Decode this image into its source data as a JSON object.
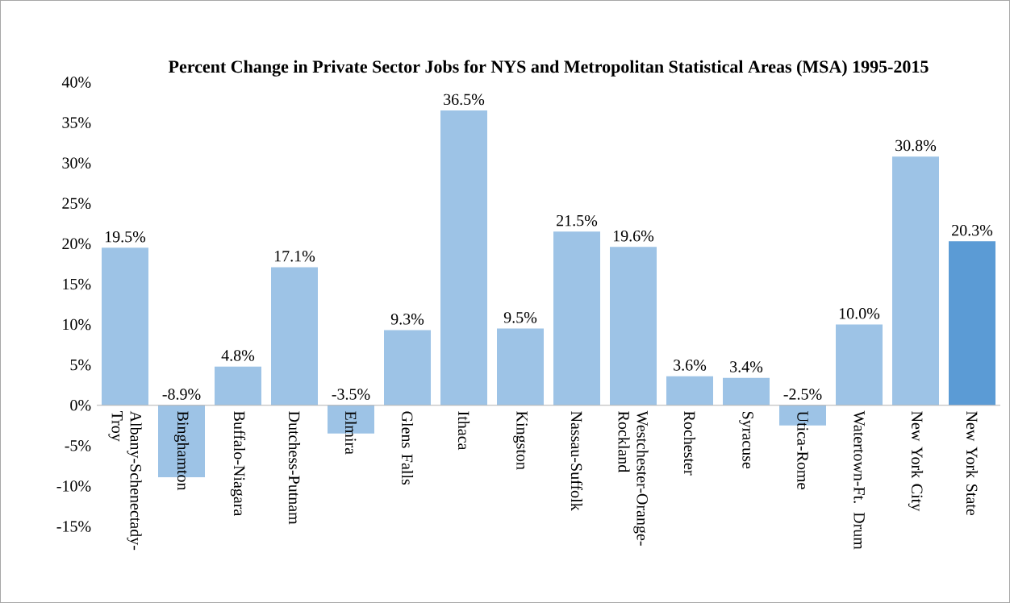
{
  "chart_data": {
    "type": "bar",
    "title": "Percent Change in Private Sector Jobs for NYS and Metropolitan Statistical Areas (MSA) 1995-2015",
    "categories": [
      "Albany-Schenectady-Troy",
      "Binghamton",
      "Buffalo-Niagara",
      "Dutchess-Putnam",
      "Elmira",
      "Glens Falls",
      "Ithaca",
      "Kingston",
      "Nassau-Suffolk",
      "Westchester-Orange-Rockland",
      "Rochester",
      "Syracuse",
      "Utica-Rome",
      "Watertown-Ft. Drum",
      "New York City",
      "New York State"
    ],
    "values": [
      19.5,
      -8.9,
      4.8,
      17.1,
      -3.5,
      9.3,
      36.5,
      9.5,
      21.5,
      19.6,
      3.6,
      3.4,
      -2.5,
      10.0,
      30.8,
      20.3
    ],
    "value_labels": [
      "19.5%",
      "-8.9%",
      "4.8%",
      "17.1%",
      "-3.5%",
      "9.3%",
      "36.5%",
      "9.5%",
      "21.5%",
      "19.6%",
      "3.6%",
      "3.4%",
      "-2.5%",
      "10.0%",
      "30.8%",
      "20.3%"
    ],
    "colors": [
      "#9dc3e6",
      "#9dc3e6",
      "#9dc3e6",
      "#9dc3e6",
      "#9dc3e6",
      "#9dc3e6",
      "#9dc3e6",
      "#9dc3e6",
      "#9dc3e6",
      "#9dc3e6",
      "#9dc3e6",
      "#9dc3e6",
      "#9dc3e6",
      "#9dc3e6",
      "#9dc3e6",
      "#5b9bd5"
    ],
    "ylim": [
      -15,
      40
    ],
    "yticks": [
      {
        "value": -15,
        "label": "-15%"
      },
      {
        "value": -10,
        "label": "-10%"
      },
      {
        "value": -5,
        "label": "-5%"
      },
      {
        "value": 0,
        "label": "0%"
      },
      {
        "value": 5,
        "label": "5%"
      },
      {
        "value": 10,
        "label": "10%"
      },
      {
        "value": 15,
        "label": "15%"
      },
      {
        "value": 20,
        "label": "20%"
      },
      {
        "value": 25,
        "label": "25%"
      },
      {
        "value": 30,
        "label": "30%"
      },
      {
        "value": 35,
        "label": "35%"
      },
      {
        "value": 40,
        "label": "40%"
      }
    ],
    "grid": false
  }
}
